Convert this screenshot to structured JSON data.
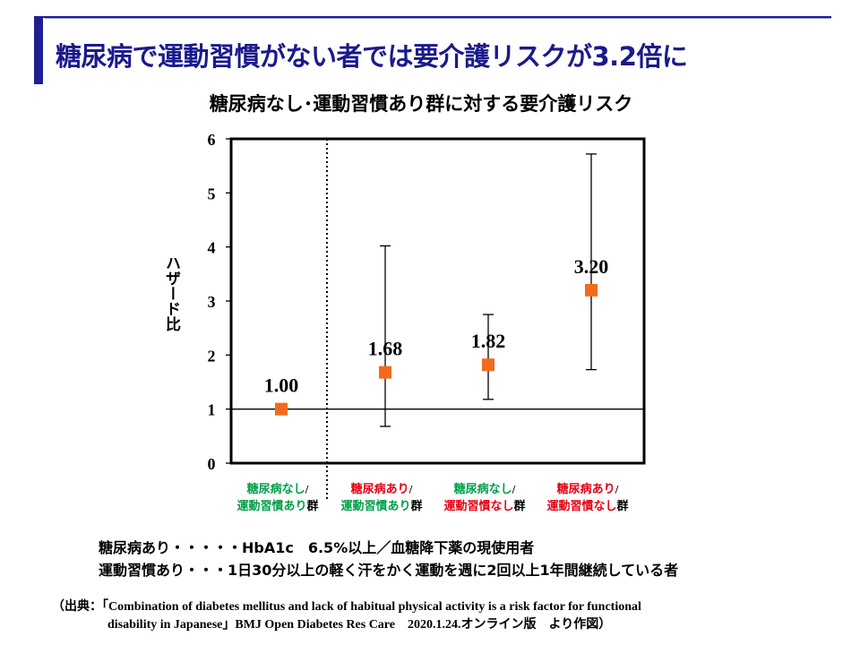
{
  "slide": {
    "title": "糖尿病で運動習慣がない者では要介護リスクが3.2倍に"
  },
  "colors": {
    "title": "#1a1a8c",
    "marker": "#f26b1d",
    "green_label": "#00a04a",
    "red_label": "#e60012"
  },
  "chart_data": {
    "type": "scatter",
    "title": "糖尿病なし･運動習慣あり群に対する要介護リスク",
    "ylabel": "ハザード比",
    "ylim": [
      0,
      6
    ],
    "yticks": [
      "0",
      "1",
      "2",
      "3",
      "4",
      "5",
      "6"
    ],
    "reference_line": 1,
    "categories": [
      {
        "line1": "糖尿病なし",
        "sep": "/",
        "line2": "運動習慣あり",
        "suffix": "群",
        "color": "green"
      },
      {
        "line1": "糖尿病あり",
        "sep": "/",
        "line2": "運動習慣あり",
        "suffix": "群",
        "color": "red_green"
      },
      {
        "line1": "糖尿病なし",
        "sep": "/",
        "line2": "運動習慣なし",
        "suffix": "群",
        "color": "green_red"
      },
      {
        "line1": "糖尿病あり",
        "sep": "/",
        "line2": "運動習慣なし",
        "suffix": "群",
        "color": "red"
      }
    ],
    "values": [
      1.0,
      1.68,
      1.82,
      3.2
    ],
    "value_labels": [
      "1.00",
      "1.68",
      "1.82",
      "3.20"
    ],
    "ci_low": [
      null,
      0.68,
      1.18,
      1.73
    ],
    "ci_high": [
      null,
      4.02,
      2.75,
      5.72
    ],
    "grid": false
  },
  "notes": {
    "line1": "糖尿病あり・・・・・HbA1c　6.5%以上／血糖降下薬の現使用者",
    "line2": "運動習慣あり・・・1日30分以上の軽く汗をかく運動を週に2回以上1年間継続している者"
  },
  "source": {
    "line1": "（出典：「Combination of diabetes mellitus and lack of habitual physical activity is a risk factor for functional",
    "line2": "disability in Japanese」BMJ Open Diabetes Res Care　2020.1.24.オンライン版　より作図）"
  }
}
